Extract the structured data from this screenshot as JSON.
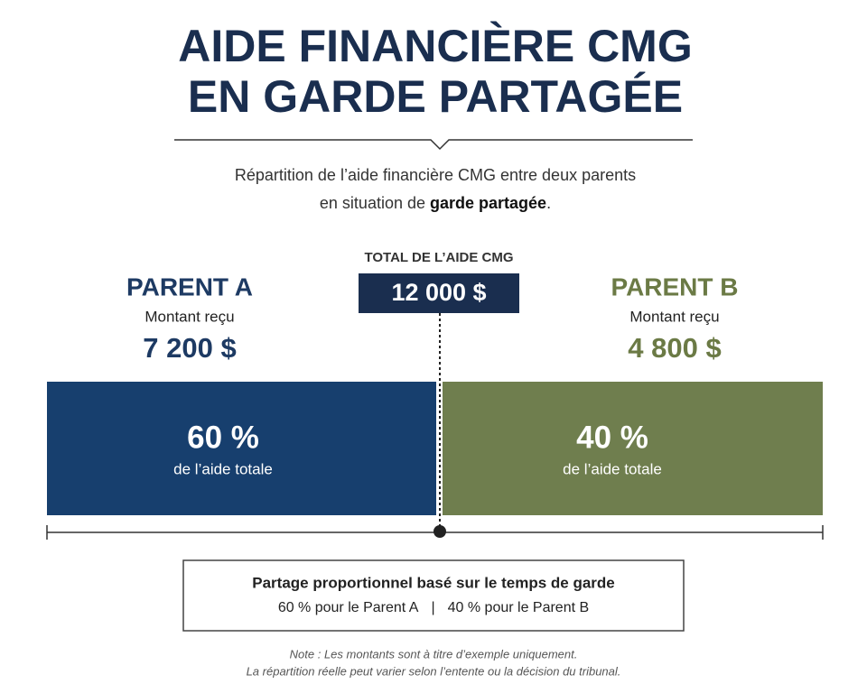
{
  "header": {
    "title_lines": [
      "AIDE FINANCIÈRE CMG",
      "EN GARDE PARTAGÉE"
    ],
    "subtitle": {
      "line1": "Répartition de l’aide financière CMG entre deux parents",
      "line2_before": "en situation de ",
      "line2_bold": "garde partagée",
      "line2_after": "."
    }
  },
  "total": {
    "label": "TOTAL DE L’AIDE CMG",
    "amount": "12 000 $"
  },
  "parents": [
    {
      "name": "PARENT A",
      "caption": "Montant reçu",
      "amount": "7 200 $",
      "share": "60 %",
      "share_caption": "de l’aide totale"
    },
    {
      "name": "PARENT B",
      "caption": "Montant reçu",
      "amount": "4 800 $",
      "share": "40 %",
      "share_caption": "de l’aide totale"
    }
  ],
  "summary": {
    "title": "Partage proportionnel basé sur le temps de garde",
    "left": "60 % pour le Parent A",
    "separator": "|",
    "right": "40 % pour le Parent B"
  },
  "note": [
    "Note : Les montants sont à titre d’exemple uniquement.",
    "La répartition réelle peut varier selon l’entente ou la décision du tribunal."
  ]
}
